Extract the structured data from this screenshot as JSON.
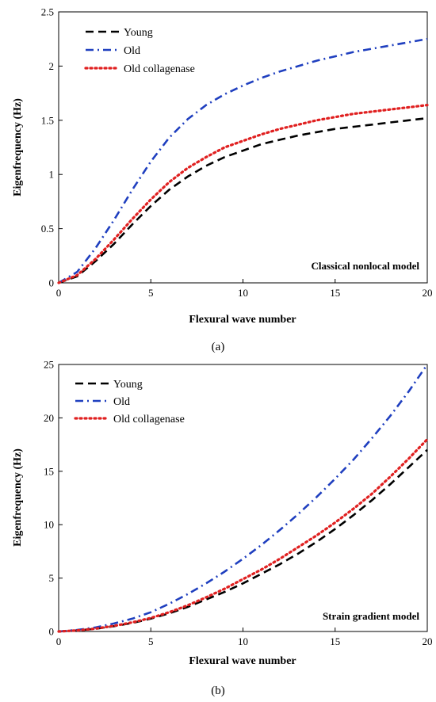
{
  "chart_data": [
    {
      "type": "line",
      "caption": "(a)",
      "annotation": "Classical nonlocal model",
      "xlabel": "Flexural wave number",
      "ylabel": "Eigenfrequency (Hz)",
      "xlim": [
        0,
        20
      ],
      "ylim": [
        0,
        2.5
      ],
      "xticks": [
        "0",
        "5",
        "10",
        "15",
        "20"
      ],
      "yticks": [
        "0",
        "0.5",
        "1",
        "1.5",
        "2",
        "2.5"
      ],
      "legend_position": "top-left",
      "x": [
        0,
        1,
        2,
        3,
        4,
        5,
        6,
        7,
        8,
        9,
        10,
        11,
        12,
        13,
        14,
        15,
        16,
        17,
        18,
        19,
        20
      ],
      "series": [
        {
          "name": "Young",
          "color": "#000000",
          "style": "dash",
          "values": [
            0,
            0.06,
            0.2,
            0.36,
            0.54,
            0.71,
            0.86,
            0.98,
            1.08,
            1.16,
            1.22,
            1.28,
            1.32,
            1.36,
            1.39,
            1.42,
            1.44,
            1.46,
            1.48,
            1.5,
            1.52
          ]
        },
        {
          "name": "Old",
          "color": "#1f3fbf",
          "style": "dashdot",
          "values": [
            0,
            0.1,
            0.32,
            0.58,
            0.86,
            1.12,
            1.34,
            1.51,
            1.64,
            1.74,
            1.82,
            1.89,
            1.95,
            2.0,
            2.05,
            2.09,
            2.13,
            2.16,
            2.19,
            2.22,
            2.25
          ]
        },
        {
          "name": "Old collagenase",
          "color": "#e02020",
          "style": "dot",
          "values": [
            0,
            0.07,
            0.22,
            0.4,
            0.59,
            0.77,
            0.93,
            1.06,
            1.16,
            1.25,
            1.31,
            1.37,
            1.42,
            1.46,
            1.5,
            1.53,
            1.56,
            1.58,
            1.6,
            1.62,
            1.64
          ]
        }
      ]
    },
    {
      "type": "line",
      "caption": "(b)",
      "annotation": "Strain gradient model",
      "xlabel": "Flexural wave number",
      "ylabel": "Eigenfrequency (Hz)",
      "xlim": [
        0,
        20
      ],
      "ylim": [
        0,
        25
      ],
      "xticks": [
        "0",
        "5",
        "10",
        "15",
        "20"
      ],
      "yticks": [
        "0",
        "5",
        "10",
        "15",
        "20",
        "25"
      ],
      "legend_position": "top-left",
      "x": [
        0,
        1,
        2,
        3,
        4,
        5,
        6,
        7,
        8,
        9,
        10,
        11,
        12,
        13,
        14,
        15,
        16,
        17,
        18,
        19,
        20
      ],
      "series": [
        {
          "name": "Young",
          "color": "#000000",
          "style": "dash",
          "values": [
            0,
            0.1,
            0.25,
            0.5,
            0.8,
            1.2,
            1.7,
            2.3,
            3.0,
            3.7,
            4.5,
            5.4,
            6.3,
            7.3,
            8.4,
            9.6,
            10.9,
            12.3,
            13.8,
            15.4,
            17.0
          ]
        },
        {
          "name": "Old",
          "color": "#1f3fbf",
          "style": "dashdot",
          "values": [
            0,
            0.15,
            0.38,
            0.75,
            1.2,
            1.8,
            2.6,
            3.5,
            4.5,
            5.6,
            6.8,
            8.1,
            9.5,
            11.0,
            12.6,
            14.3,
            16.1,
            18.1,
            20.2,
            22.5,
            25.0
          ]
        },
        {
          "name": "Old collagenase",
          "color": "#e02020",
          "style": "dot",
          "values": [
            0,
            0.1,
            0.27,
            0.53,
            0.85,
            1.27,
            1.8,
            2.45,
            3.2,
            4.0,
            4.9,
            5.8,
            6.8,
            7.9,
            9.0,
            10.2,
            11.5,
            12.9,
            14.5,
            16.2,
            18.0
          ]
        }
      ]
    }
  ]
}
